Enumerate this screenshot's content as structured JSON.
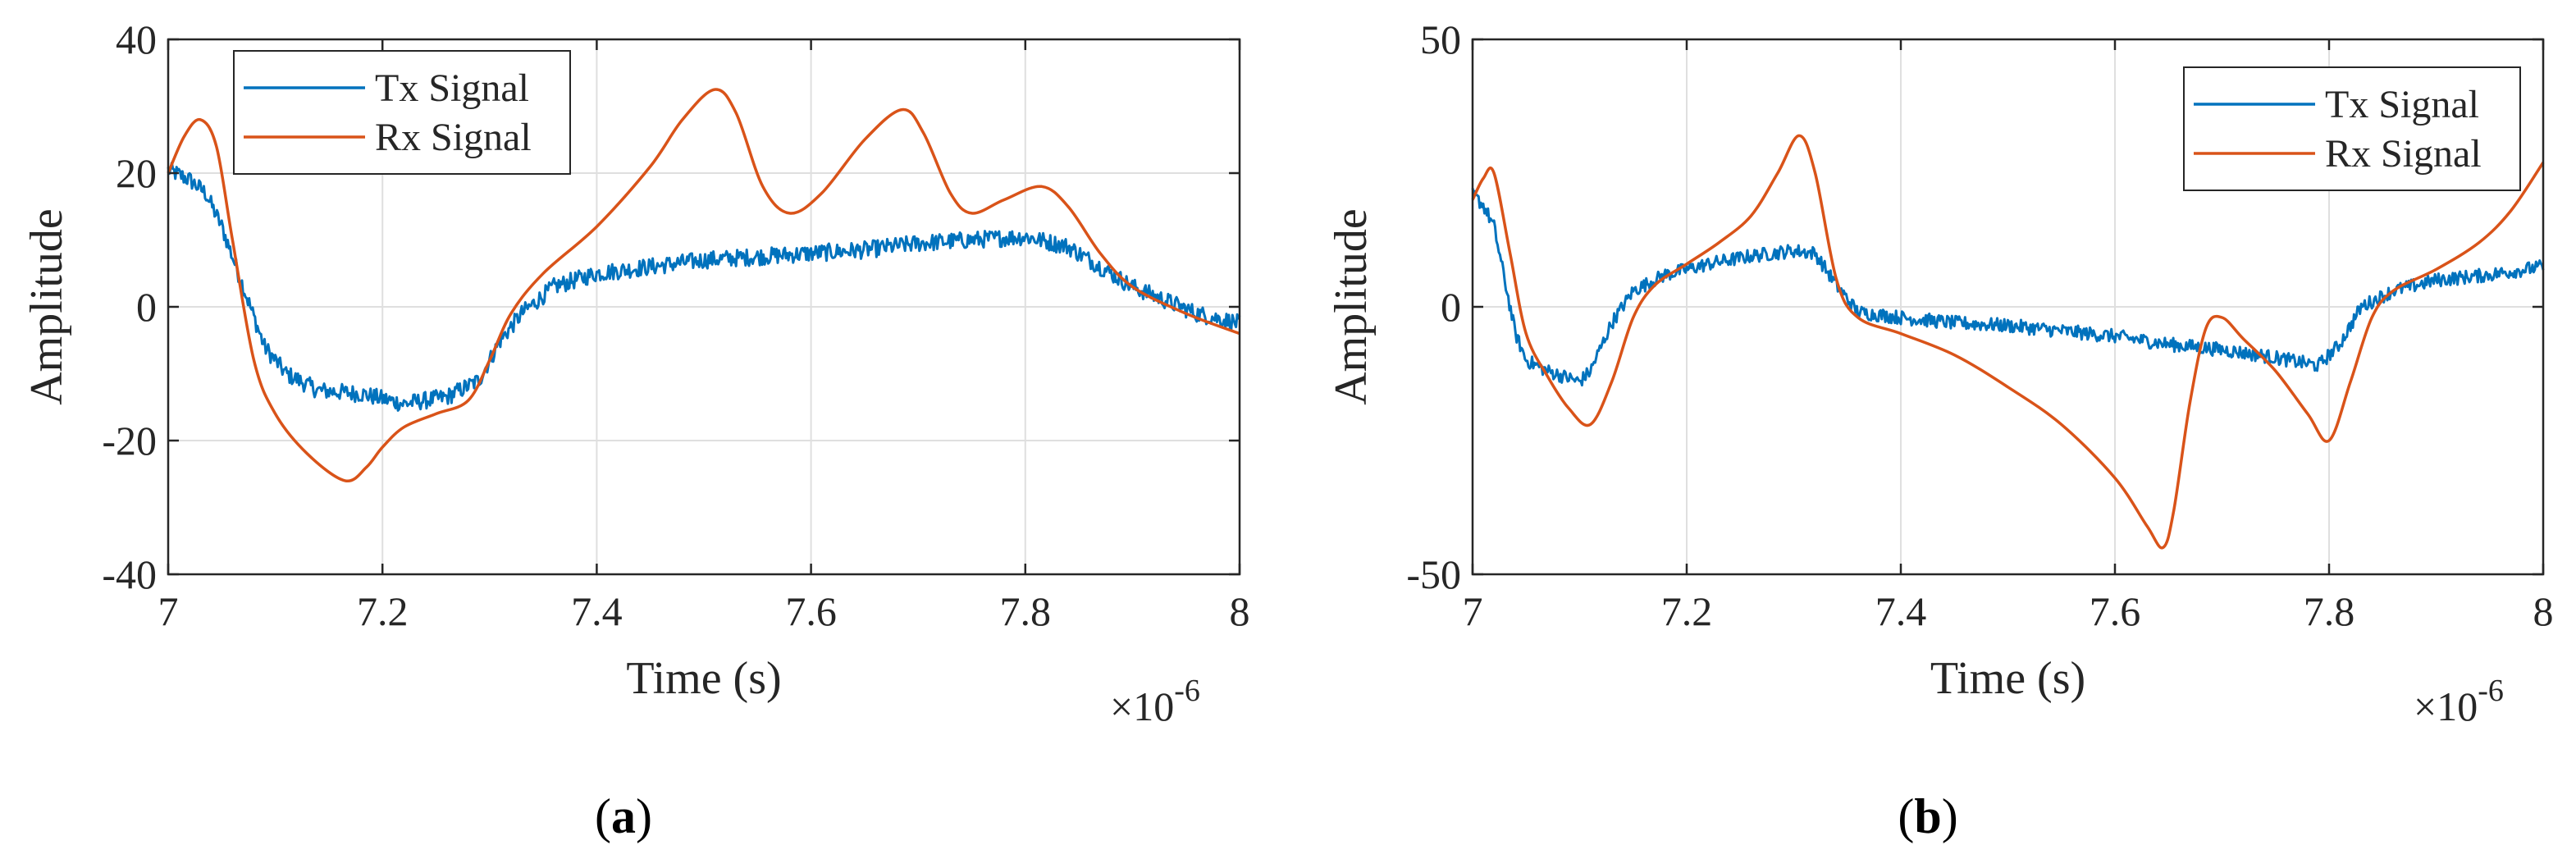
{
  "chart_data": [
    {
      "panel": "(a)",
      "type": "line",
      "xlabel": "Time (s)",
      "ylabel": "Amplitude",
      "x_multiplier": "×10",
      "x_multiplier_exp": "-6",
      "xlim": [
        7,
        8
      ],
      "ylim": [
        -40,
        40
      ],
      "xticks": [
        7,
        7.2,
        7.4,
        7.6,
        7.8,
        8
      ],
      "xtick_labels": [
        "7",
        "7.2",
        "7.4",
        "7.6",
        "7.8",
        "8"
      ],
      "yticks": [
        -40,
        -20,
        0,
        20,
        40
      ],
      "ytick_labels": [
        "-40",
        "-20",
        "0",
        "20",
        "40"
      ],
      "grid": true,
      "legend_position": "top-left",
      "series": [
        {
          "name": "Tx Signal",
          "color": "#0072BD",
          "noisy": true,
          "points": [
            [
              7.0,
              20.5
            ],
            [
              7.02,
              19
            ],
            [
              7.035,
              17
            ],
            [
              7.05,
              12
            ],
            [
              7.07,
              3
            ],
            [
              7.09,
              -6
            ],
            [
              7.11,
              -10
            ],
            [
              7.14,
              -12.5
            ],
            [
              7.18,
              -13
            ],
            [
              7.22,
              -14.5
            ],
            [
              7.26,
              -13.5
            ],
            [
              7.29,
              -11
            ],
            [
              7.31,
              -5
            ],
            [
              7.33,
              -1
            ],
            [
              7.36,
              3
            ],
            [
              7.4,
              5
            ],
            [
              7.45,
              6
            ],
            [
              7.5,
              7
            ],
            [
              7.55,
              7.5
            ],
            [
              7.6,
              8
            ],
            [
              7.65,
              8.5
            ],
            [
              7.7,
              9.5
            ],
            [
              7.75,
              10
            ],
            [
              7.8,
              10.5
            ],
            [
              7.84,
              9
            ],
            [
              7.87,
              6
            ],
            [
              7.9,
              3
            ],
            [
              7.93,
              1
            ],
            [
              7.96,
              -1
            ],
            [
              8.0,
              -2.5
            ]
          ]
        },
        {
          "name": "Rx Signal",
          "color": "#D95319",
          "noisy": false,
          "points": [
            [
              7.0,
              20
            ],
            [
              7.015,
              25.5
            ],
            [
              7.03,
              28
            ],
            [
              7.045,
              24
            ],
            [
              7.06,
              10
            ],
            [
              7.08,
              -8
            ],
            [
              7.1,
              -16
            ],
            [
              7.13,
              -22
            ],
            [
              7.165,
              -26
            ],
            [
              7.185,
              -24
            ],
            [
              7.2,
              -21
            ],
            [
              7.22,
              -18
            ],
            [
              7.25,
              -16
            ],
            [
              7.28,
              -14
            ],
            [
              7.3,
              -8
            ],
            [
              7.32,
              -1
            ],
            [
              7.35,
              5
            ],
            [
              7.4,
              12
            ],
            [
              7.45,
              21
            ],
            [
              7.48,
              28
            ],
            [
              7.51,
              32.5
            ],
            [
              7.53,
              29
            ],
            [
              7.555,
              18
            ],
            [
              7.58,
              14
            ],
            [
              7.61,
              17
            ],
            [
              7.65,
              25
            ],
            [
              7.685,
              29.5
            ],
            [
              7.705,
              26
            ],
            [
              7.73,
              17
            ],
            [
              7.75,
              14
            ],
            [
              7.78,
              16
            ],
            [
              7.815,
              18
            ],
            [
              7.84,
              15
            ],
            [
              7.87,
              8
            ],
            [
              7.9,
              3
            ],
            [
              7.95,
              -1
            ],
            [
              8.0,
              -4
            ]
          ]
        }
      ]
    },
    {
      "panel": "(b)",
      "type": "line",
      "xlabel": "Time (s)",
      "ylabel": "Amplitude",
      "x_multiplier": "×10",
      "x_multiplier_exp": "-6",
      "xlim": [
        7,
        8
      ],
      "ylim": [
        -50,
        50
      ],
      "xticks": [
        7,
        7.2,
        7.4,
        7.6,
        7.8,
        8
      ],
      "xtick_labels": [
        "7",
        "7.2",
        "7.4",
        "7.6",
        "7.8",
        "8"
      ],
      "yticks": [
        -50,
        0,
        50
      ],
      "ytick_labels": [
        "-50",
        "0",
        "50"
      ],
      "grid": true,
      "legend_position": "top-right",
      "series": [
        {
          "name": "Tx Signal",
          "color": "#0072BD",
          "noisy": true,
          "points": [
            [
              7.0,
              21
            ],
            [
              7.01,
              19
            ],
            [
              7.02,
              15
            ],
            [
              7.03,
              5
            ],
            [
              7.04,
              -5
            ],
            [
              7.05,
              -10
            ],
            [
              7.07,
              -12
            ],
            [
              7.1,
              -14
            ],
            [
              7.11,
              -12
            ],
            [
              7.13,
              -3
            ],
            [
              7.15,
              3
            ],
            [
              7.18,
              6
            ],
            [
              7.22,
              8
            ],
            [
              7.26,
              9.5
            ],
            [
              7.3,
              10.5
            ],
            [
              7.32,
              10
            ],
            [
              7.34,
              4
            ],
            [
              7.36,
              -1
            ],
            [
              7.4,
              -2
            ],
            [
              7.45,
              -3
            ],
            [
              7.5,
              -3.5
            ],
            [
              7.55,
              -4.5
            ],
            [
              7.6,
              -5.5
            ],
            [
              7.65,
              -7
            ],
            [
              7.7,
              -8
            ],
            [
              7.75,
              -9.5
            ],
            [
              7.79,
              -11
            ],
            [
              7.81,
              -7
            ],
            [
              7.83,
              0
            ],
            [
              7.86,
              3
            ],
            [
              7.9,
              5
            ],
            [
              7.95,
              6
            ],
            [
              8.0,
              7.5
            ]
          ]
        },
        {
          "name": "Rx Signal",
          "color": "#D95319",
          "noisy": false,
          "points": [
            [
              7.0,
              20
            ],
            [
              7.01,
              24
            ],
            [
              7.02,
              25
            ],
            [
              7.035,
              10
            ],
            [
              7.05,
              -5
            ],
            [
              7.07,
              -13
            ],
            [
              7.09,
              -19
            ],
            [
              7.11,
              -22
            ],
            [
              7.13,
              -14
            ],
            [
              7.15,
              -2
            ],
            [
              7.17,
              4
            ],
            [
              7.2,
              8
            ],
            [
              7.23,
              12
            ],
            [
              7.26,
              17
            ],
            [
              7.285,
              25
            ],
            [
              7.305,
              32
            ],
            [
              7.32,
              25
            ],
            [
              7.34,
              5
            ],
            [
              7.36,
              -2
            ],
            [
              7.4,
              -5
            ],
            [
              7.45,
              -9
            ],
            [
              7.5,
              -15
            ],
            [
              7.55,
              -22
            ],
            [
              7.6,
              -32
            ],
            [
              7.63,
              -41
            ],
            [
              7.645,
              -45
            ],
            [
              7.655,
              -38
            ],
            [
              7.67,
              -18
            ],
            [
              7.685,
              -4
            ],
            [
              7.7,
              -2
            ],
            [
              7.72,
              -6
            ],
            [
              7.75,
              -12
            ],
            [
              7.78,
              -20
            ],
            [
              7.8,
              -25
            ],
            [
              7.82,
              -14
            ],
            [
              7.84,
              -2
            ],
            [
              7.86,
              3
            ],
            [
              7.9,
              7
            ],
            [
              7.94,
              12
            ],
            [
              7.97,
              18
            ],
            [
              8.0,
              27
            ]
          ]
        }
      ]
    }
  ]
}
